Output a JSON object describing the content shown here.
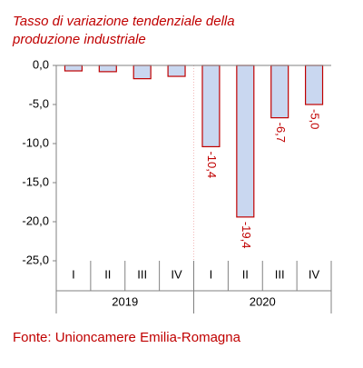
{
  "chart_data": {
    "type": "bar",
    "title": "Tasso di variazione tendenziale della produzione industriale",
    "categories": [
      "I",
      "II",
      "III",
      "IV",
      "I",
      "II",
      "III",
      "IV"
    ],
    "groups": [
      "2019",
      "2020"
    ],
    "values": [
      -0.7,
      -0.8,
      -1.7,
      -1.4,
      -10.4,
      -19.4,
      -6.7,
      -5.0
    ],
    "value_labels": [
      null,
      null,
      null,
      null,
      "-10,4",
      "-19,4",
      "-6,7",
      "-5,0"
    ],
    "color": "#c9d7f0",
    "edge_color": "#c00000",
    "ylim": [
      -25,
      0
    ],
    "yticks": [
      {
        "value": 0,
        "label": "0,0"
      },
      {
        "value": -5,
        "label": "-5,0"
      },
      {
        "value": -10,
        "label": "-10,0"
      },
      {
        "value": -15,
        "label": "-15,0"
      },
      {
        "value": -20,
        "label": "-20,0"
      },
      {
        "value": -25,
        "label": "-25,0"
      }
    ],
    "source": "Fonte: Unioncamere Emilia-Romagna"
  }
}
